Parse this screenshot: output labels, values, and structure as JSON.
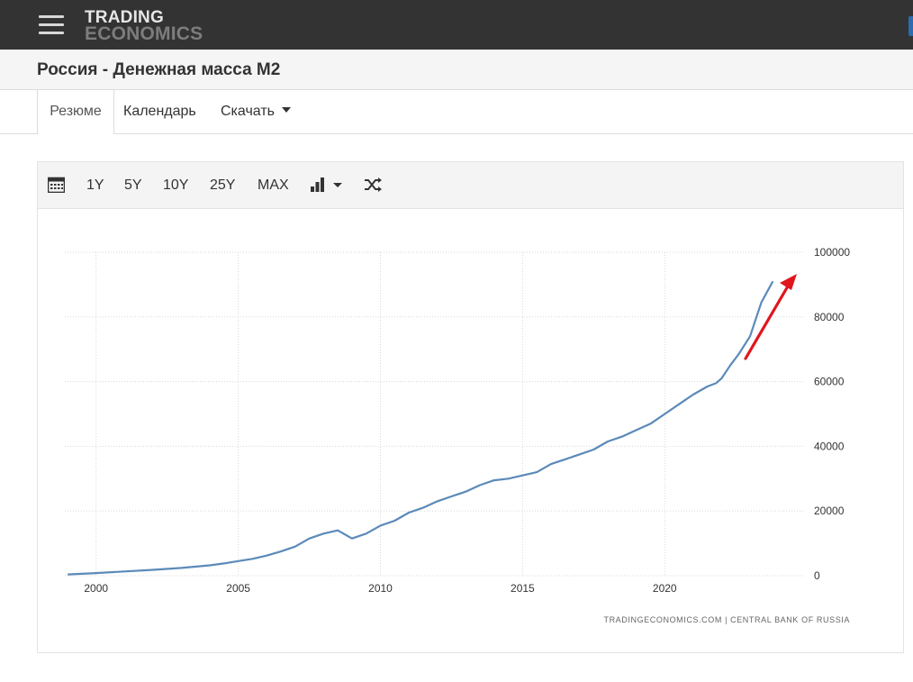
{
  "header": {
    "logo_line1": "TRADING",
    "logo_line2": "ECONOMICS"
  },
  "page": {
    "title": "Россия - Денежная масса M2"
  },
  "tabs": [
    {
      "label": "Резюме",
      "active": true
    },
    {
      "label": "Календарь",
      "active": false
    },
    {
      "label": "Скачать",
      "active": false
    }
  ],
  "toolbar": {
    "ranges": [
      "1Y",
      "5Y",
      "10Y",
      "25Y",
      "MAX"
    ],
    "icons": [
      "calendar-icon",
      "bar-chart-icon",
      "chevron-down-icon",
      "shuffle-icon"
    ]
  },
  "colors": {
    "topbar": "#333333",
    "line": "#5b8ab9",
    "arrow": "#e0161b",
    "grid": "#d9d9d9"
  },
  "chart_data": {
    "type": "line",
    "title": "",
    "xlabel": "",
    "ylabel": "",
    "xlim": [
      1998.9,
      2024.9
    ],
    "ylim": [
      0,
      100000
    ],
    "x_ticks": [
      2000,
      2005,
      2010,
      2015,
      2020
    ],
    "x_tick_labels": [
      "2000",
      "2005",
      "2010",
      "2015",
      "2020"
    ],
    "y_ticks": [
      0,
      20000,
      40000,
      60000,
      80000,
      100000
    ],
    "y_tick_labels": [
      "0",
      "20000",
      "40000",
      "60000",
      "80000",
      "100000"
    ],
    "y_axis_side": "right",
    "grid": true,
    "grid_style": "dotted",
    "legend": "none",
    "source_note": "TRADINGECONOMICS.COM  |  CENTRAL BANK OF RUSSIA",
    "annotation": "red arrow pointing up toward latest values",
    "series": [
      {
        "x": [
          1999.0,
          2000.0,
          2001.0,
          2002.0,
          2003.0,
          2004.0,
          2004.5,
          2005.0,
          2005.5,
          2006.0,
          2006.5,
          2007.0,
          2007.5,
          2008.0,
          2008.5,
          2008.8,
          2009.0,
          2009.5,
          2010.0,
          2010.5,
          2011.0,
          2011.5,
          2012.0,
          2012.5,
          2013.0,
          2013.5,
          2014.0,
          2014.5,
          2015.0,
          2015.5,
          2016.0,
          2016.5,
          2017.0,
          2017.5,
          2018.0,
          2018.5,
          2019.0,
          2019.5,
          2020.0,
          2020.5,
          2021.0,
          2021.5,
          2021.8,
          2022.0,
          2022.3,
          2022.6,
          2023.0,
          2023.4,
          2023.8
        ],
        "y": [
          400,
          800,
          1300,
          1800,
          2400,
          3200,
          3800,
          4500,
          5200,
          6200,
          7500,
          9000,
          11500,
          13000,
          14000,
          12500,
          11500,
          13000,
          15500,
          17000,
          19500,
          21000,
          23000,
          24500,
          26000,
          28000,
          29500,
          30000,
          31000,
          32000,
          34500,
          36000,
          37500,
          39000,
          41500,
          43000,
          45000,
          47000,
          50000,
          53000,
          56000,
          58500,
          59500,
          61000,
          65000,
          68500,
          74000,
          84500,
          91000
        ]
      }
    ]
  }
}
